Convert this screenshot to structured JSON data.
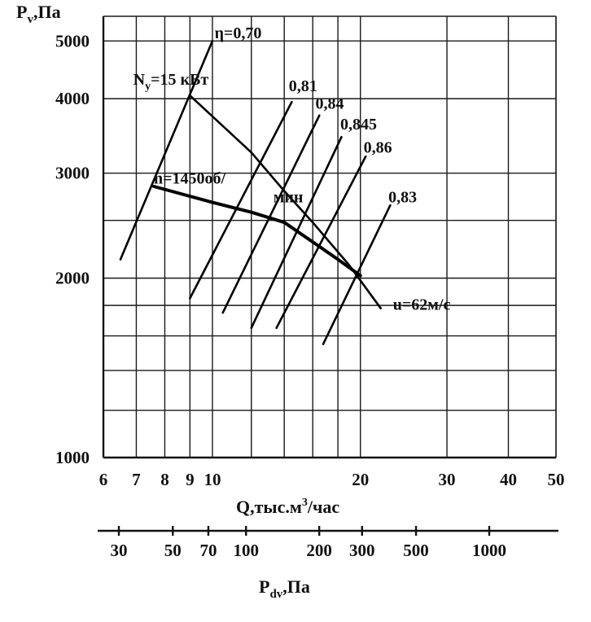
{
  "chart_data": {
    "type": "line",
    "title": "",
    "ylabel": {
      "main": "P",
      "sub": "v",
      "tail": ",Па"
    },
    "xlabel": {
      "main": "Q,тыс.м",
      "sup": "3",
      "tail": "/час"
    },
    "x_scale": "log",
    "y_scale": "log",
    "xlim": [
      6,
      50
    ],
    "ylim": [
      1000,
      5500
    ],
    "x_ticks": [
      {
        "v": 6,
        "t": "6"
      },
      {
        "v": 7,
        "t": "7"
      },
      {
        "v": 8,
        "t": "8"
      },
      {
        "v": 9,
        "t": "9"
      },
      {
        "v": 10,
        "t": "10"
      },
      {
        "v": 20,
        "t": "20"
      },
      {
        "v": 30,
        "t": "30"
      },
      {
        "v": 40,
        "t": "40"
      },
      {
        "v": 50,
        "t": "50"
      }
    ],
    "x_grid": [
      6,
      7,
      8,
      9,
      10,
      12,
      14,
      16,
      18,
      20,
      30,
      40,
      50
    ],
    "y_ticks": [
      {
        "v": 1000,
        "t": "1000"
      },
      {
        "v": 2000,
        "t": "2000"
      },
      {
        "v": 3000,
        "t": "3000"
      },
      {
        "v": 4000,
        "t": "4000"
      },
      {
        "v": 5000,
        "t": "5000"
      }
    ],
    "y_grid": [
      1000,
      1200,
      1400,
      1600,
      1800,
      2000,
      2500,
      3000,
      4000,
      5000
    ],
    "secondary_axis": {
      "label": {
        "main": "P",
        "sub": "dv",
        "tail": ",Па"
      },
      "ticks": [
        {
          "v": 30,
          "t": "30"
        },
        {
          "v": 50,
          "t": "50"
        },
        {
          "v": 70,
          "t": "70"
        },
        {
          "v": 100,
          "t": "100"
        },
        {
          "v": 200,
          "t": "200"
        },
        {
          "v": 300,
          "t": "300"
        },
        {
          "v": 500,
          "t": "500"
        },
        {
          "v": 1000,
          "t": "1000"
        }
      ]
    },
    "curves": [
      {
        "name": "n=1450об/мин",
        "points": [
          [
            7.6,
            2850
          ],
          [
            10,
            2680
          ],
          [
            12,
            2580
          ],
          [
            14,
            2480
          ],
          [
            16,
            2300
          ],
          [
            18,
            2150
          ],
          [
            20,
            2020
          ]
        ]
      },
      {
        "name": "Ny=15 кВт",
        "points": [
          [
            9,
            4050
          ],
          [
            12,
            3250
          ],
          [
            14,
            2800
          ],
          [
            16,
            2480
          ],
          [
            19,
            2100
          ],
          [
            22,
            1780
          ]
        ]
      }
    ],
    "efficiency_lines": [
      {
        "name": "η=0,70",
        "from": [
          6.5,
          2150
        ],
        "to": [
          10,
          5000
        ]
      },
      {
        "name": "0,81",
        "from": [
          9,
          1850
        ],
        "to": [
          14.5,
          3950
        ]
      },
      {
        "name": "0,84",
        "from": [
          10.5,
          1750
        ],
        "to": [
          16.5,
          3750
        ]
      },
      {
        "name": "0,845",
        "from": [
          12,
          1650
        ],
        "to": [
          18.3,
          3450
        ]
      },
      {
        "name": "0,86",
        "from": [
          13.5,
          1650
        ],
        "to": [
          20.5,
          3200
        ]
      },
      {
        "name": "0,83",
        "from": [
          16.8,
          1550
        ],
        "to": [
          23,
          2650
        ]
      }
    ],
    "annotations": [
      {
        "text": "η=0,70",
        "x": 10.1,
        "y": 5050
      },
      {
        "text": "N",
        "sub": "y",
        "tail": "=15 кВт",
        "x": 6.9,
        "y": 4220
      },
      {
        "text": "0,81",
        "x": 14.3,
        "y": 4120
      },
      {
        "text": "0,84",
        "x": 16.2,
        "y": 3850
      },
      {
        "text": "0,845",
        "x": 18.2,
        "y": 3550
      },
      {
        "text": "0,86",
        "x": 20.3,
        "y": 3250
      },
      {
        "text": "0,83",
        "x": 22.8,
        "y": 2680
      },
      {
        "text": "n=1450об/",
        "x": 7.6,
        "y": 2880
      },
      {
        "text": "мин",
        "x": 13.3,
        "y": 2680
      },
      {
        "text": "u=62м/с",
        "x": 23.3,
        "y": 1770
      }
    ]
  }
}
